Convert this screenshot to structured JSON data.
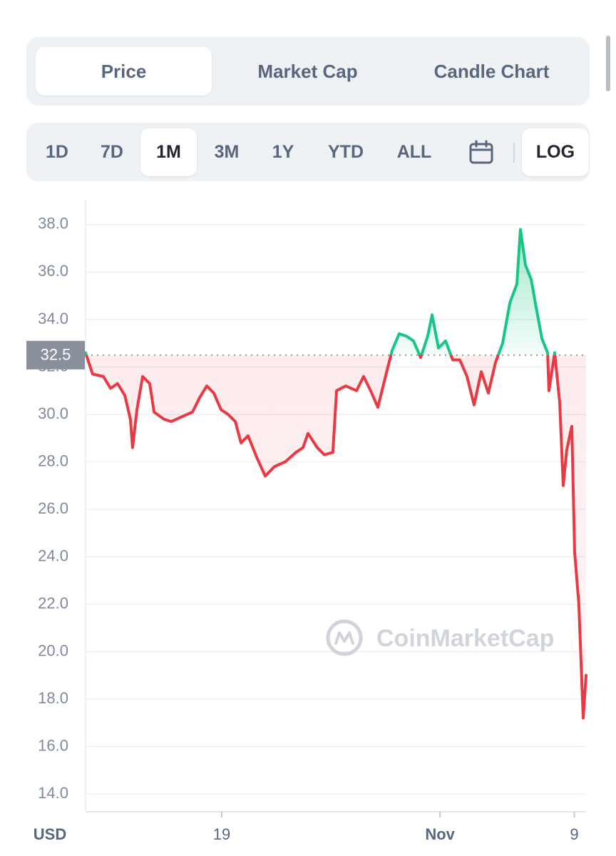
{
  "tabs": [
    "Price",
    "Market Cap",
    "Candle Chart"
  ],
  "ranges": [
    "1D",
    "7D",
    "1M",
    "3M",
    "1Y",
    "YTD",
    "ALL"
  ],
  "scale_toggle": "LOG",
  "currency": "USD",
  "watermark": "CoinMarketCap",
  "chart_data": {
    "type": "line",
    "x": [
      -8.11,
      -7.69,
      -7.05,
      -6.62,
      -6.2,
      -5.77,
      -5.44,
      -5.31,
      -5.05,
      -4.71,
      -4.29,
      -4.03,
      -3.44,
      -3.01,
      -2.38,
      -1.74,
      -1.32,
      -0.89,
      -0.47,
      -0.04,
      0.38,
      0.81,
      1.15,
      1.57,
      2.08,
      2.59,
      3.14,
      3.78,
      4.42,
      4.84,
      5.14,
      5.69,
      6.11,
      6.62,
      6.84,
      7.39,
      8.03,
      8.45,
      8.87,
      9.3,
      9.72,
      10.15,
      10.57,
      11.0,
      11.42,
      11.85,
      12.27,
      12.53,
      12.91,
      13.33,
      13.76,
      14.18,
      14.61,
      15.03,
      15.46,
      15.88,
      16.31,
      16.73,
      17.16,
      17.58,
      17.79,
      18.09,
      18.43,
      18.73,
      19.07,
      19.41,
      19.49,
      19.83,
      20.13,
      20.34,
      20.55,
      20.85,
      21.02,
      21.27,
      21.53,
      21.7
    ],
    "values": [
      32.6,
      31.7,
      31.6,
      31.1,
      31.3,
      30.8,
      29.8,
      28.6,
      30.2,
      31.6,
      31.3,
      30.1,
      29.8,
      29.7,
      29.9,
      30.1,
      30.7,
      31.2,
      30.9,
      30.2,
      30.0,
      29.7,
      28.8,
      29.1,
      28.2,
      27.4,
      27.8,
      28.0,
      28.4,
      28.6,
      29.2,
      28.6,
      28.3,
      28.4,
      31.0,
      31.2,
      31.0,
      31.6,
      31.0,
      30.3,
      31.5,
      32.7,
      33.4,
      33.3,
      33.1,
      32.4,
      33.3,
      34.2,
      32.8,
      33.1,
      32.3,
      32.3,
      31.6,
      30.4,
      31.8,
      30.9,
      32.2,
      33.0,
      34.7,
      35.5,
      37.8,
      36.3,
      35.7,
      34.5,
      33.2,
      32.6,
      31.0,
      32.6,
      30.5,
      27.0,
      28.5,
      29.5,
      24.2,
      22.0,
      17.2,
      19.0
    ],
    "color": "#ea3943",
    "up_color": "#16c784",
    "reference_line": 32.5,
    "xlim": [
      -8.11,
      21.7
    ],
    "xticks": [
      {
        "value": 0,
        "label": "19"
      },
      {
        "value": 13,
        "label": "Nov"
      },
      {
        "value": 21,
        "label": "9"
      }
    ],
    "ylim": [
      13.25,
      39.05
    ],
    "yticks": [
      {
        "value": 14,
        "label": "14.0"
      },
      {
        "value": 16,
        "label": "16.0"
      },
      {
        "value": 18,
        "label": "18.0"
      },
      {
        "value": 20,
        "label": "20.0"
      },
      {
        "value": 22,
        "label": "22.0"
      },
      {
        "value": 24,
        "label": "24.0"
      },
      {
        "value": 26,
        "label": "26.0"
      },
      {
        "value": 28,
        "label": "28.0"
      },
      {
        "value": 30,
        "label": "30.0"
      },
      {
        "value": 32,
        "label": "32.0"
      },
      {
        "value": 34,
        "label": "34.0"
      },
      {
        "value": 36,
        "label": "36.0"
      },
      {
        "value": 38,
        "label": "38.0"
      }
    ],
    "grid": true
  }
}
